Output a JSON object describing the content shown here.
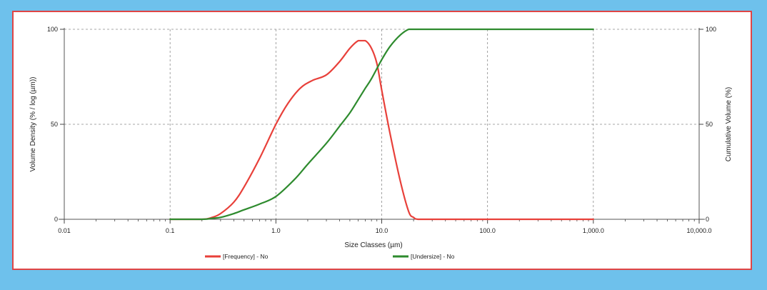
{
  "chart_data": {
    "type": "line",
    "x_scale": "log",
    "xlim": [
      0.01,
      10000
    ],
    "ylim": [
      0,
      100
    ],
    "y2lim": [
      0,
      100
    ],
    "xlabel": "Size Classes (µm)",
    "ylabel": "Volume Density (% / log (µm))",
    "y2label": "Cumulative Volume (%)",
    "x_ticks": [
      {
        "value": 0.01,
        "label": "0.01"
      },
      {
        "value": 0.1,
        "label": "0.1"
      },
      {
        "value": 1,
        "label": "1.0"
      },
      {
        "value": 10,
        "label": "10.0"
      },
      {
        "value": 100,
        "label": "100.0"
      },
      {
        "value": 1000,
        "label": "1,000.0"
      },
      {
        "value": 10000,
        "label": "10,000.0"
      }
    ],
    "y_ticks": [
      {
        "value": 0,
        "label": "0"
      },
      {
        "value": 50,
        "label": "50"
      },
      {
        "value": 100,
        "label": "100"
      }
    ],
    "y2_ticks": [
      {
        "value": 0,
        "label": "0"
      },
      {
        "value": 50,
        "label": "50"
      },
      {
        "value": 100,
        "label": "100"
      }
    ],
    "grid": true,
    "legend_position": "bottom",
    "series": [
      {
        "name": "[Frequency] - No",
        "color": "#e8403a",
        "axis": "left",
        "x": [
          0.1,
          0.2,
          0.25,
          0.3,
          0.4,
          0.5,
          0.7,
          1.0,
          1.3,
          1.7,
          2.2,
          3.0,
          4.0,
          5.0,
          6.0,
          7.0,
          8.0,
          9.0,
          10.0,
          12.0,
          15.0,
          18.0,
          20.0,
          22.0,
          30.0,
          100.0,
          1000.0
        ],
        "y": [
          0,
          0,
          1,
          3,
          9,
          17,
          32,
          50,
          61,
          69,
          73,
          76,
          83,
          90,
          94,
          94,
          90,
          82,
          68,
          45,
          20,
          4,
          1,
          0,
          0,
          0,
          0
        ]
      },
      {
        "name": "[Undersize] - No",
        "color": "#2e8b2e",
        "axis": "right",
        "x": [
          0.1,
          0.2,
          0.25,
          0.3,
          0.4,
          0.5,
          0.7,
          1.0,
          1.5,
          2.0,
          3.0,
          4.0,
          5.0,
          6.0,
          7.0,
          8.0,
          10.0,
          12.0,
          15.0,
          18.0,
          20.0,
          30.0,
          100.0,
          1000.0
        ],
        "y": [
          0,
          0,
          0.5,
          1,
          3,
          5,
          8,
          12,
          21,
          29,
          40,
          49,
          56,
          63,
          69,
          74,
          84,
          91,
          97,
          100,
          100,
          100,
          100,
          100
        ]
      }
    ]
  }
}
